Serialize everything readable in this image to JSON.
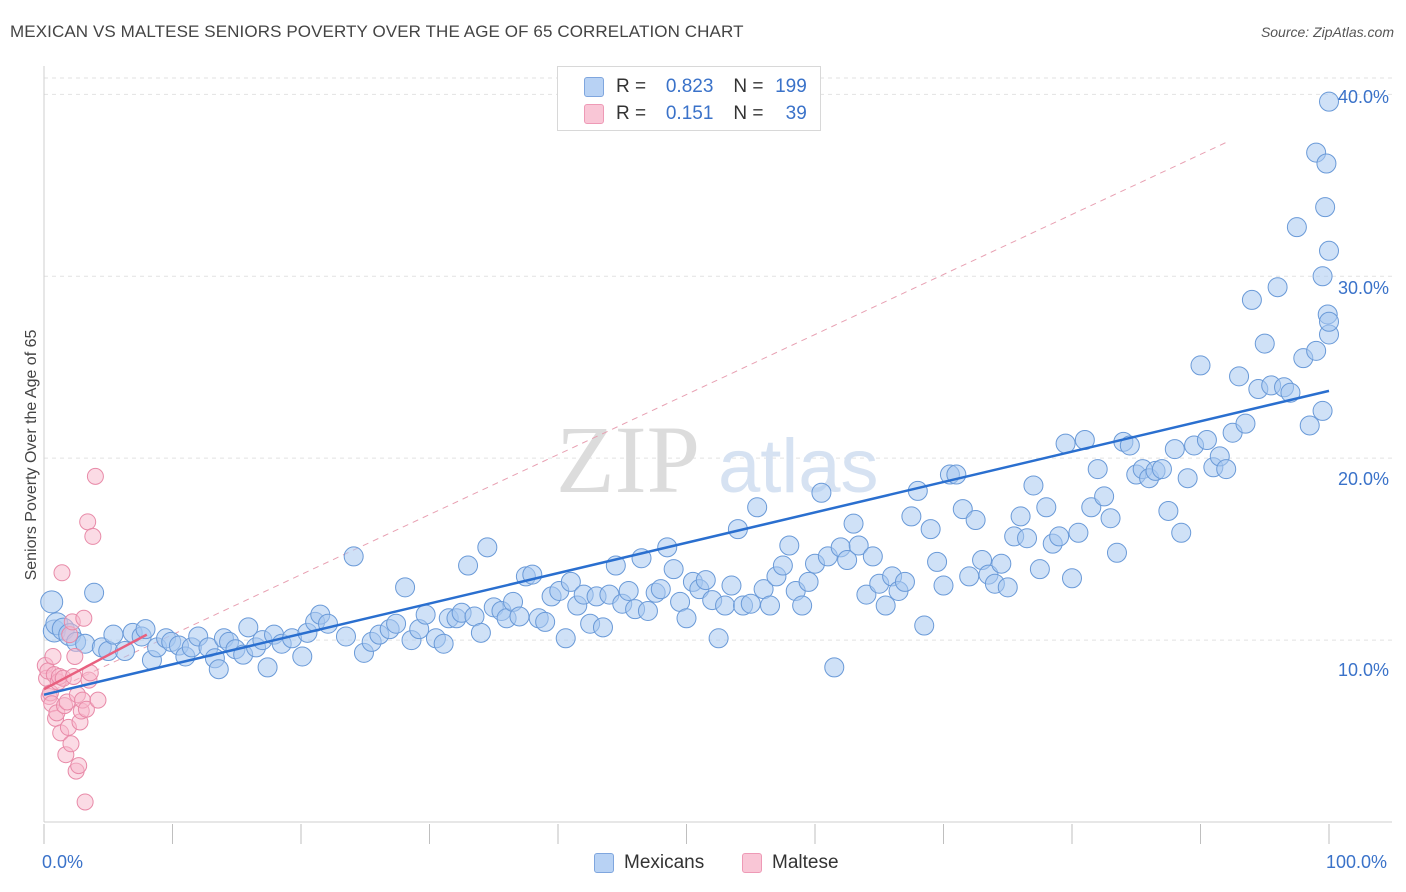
{
  "title": "MEXICAN VS MALTESE SENIORS POVERTY OVER THE AGE OF 65 CORRELATION CHART",
  "source": "Source: ZipAtlas.com",
  "watermark": {
    "zip": "ZIP",
    "atlas": "atlas"
  },
  "legend_top": {
    "row1": {
      "r_label": "R =",
      "r_value": "0.823",
      "n_label": "N =",
      "n_value": "199"
    },
    "row2": {
      "r_label": "R =",
      "r_value": "0.151",
      "n_label": "N =",
      "n_value": "39"
    }
  },
  "legend_bottom": {
    "mexicans": "Mexicans",
    "maltese": "Maltese"
  },
  "colors": {
    "blue_fill": "#a8c8f0",
    "blue_stroke": "#6a9ad8",
    "blue_line": "#2a6fcf",
    "pink_fill": "#f7b8cc",
    "pink_stroke": "#e88aa8",
    "pink_line": "#e8607f",
    "tick_text": "#3a72c9",
    "grid": "#e2e2e2"
  },
  "chart_data": {
    "type": "scatter",
    "title": "MEXICAN VS MALTESE SENIORS POVERTY OVER THE AGE OF 65 CORRELATION CHART",
    "xlabel": "",
    "ylabel": "Seniors Poverty Over the Age of 65",
    "xlim": [
      0,
      100
    ],
    "ylim": [
      0,
      40.9
    ],
    "x_tick_labels": [
      "0.0%",
      "100.0%"
    ],
    "y_ticks": [
      10,
      20,
      30,
      40
    ],
    "y_tick_labels": [
      "10.0%",
      "20.0%",
      "30.0%",
      "40.0%"
    ],
    "grid": true,
    "legend_position": "top-center",
    "series": [
      {
        "name": "Mexicans",
        "r": 0.823,
        "n": 199,
        "trend": {
          "x": [
            0,
            100
          ],
          "y": [
            7.0,
            23.7
          ]
        },
        "points": [
          [
            0.6,
            12.1
          ],
          [
            0.8,
            10.5
          ],
          [
            1.0,
            10.9
          ],
          [
            1.5,
            10.6
          ],
          [
            2.0,
            10.3
          ],
          [
            2.5,
            9.9
          ],
          [
            3.2,
            9.8
          ],
          [
            3.9,
            12.6
          ],
          [
            4.5,
            9.6
          ],
          [
            5.0,
            9.4
          ],
          [
            5.4,
            10.3
          ],
          [
            6.3,
            9.4
          ],
          [
            6.9,
            10.4
          ],
          [
            7.6,
            10.2
          ],
          [
            7.9,
            10.6
          ],
          [
            8.4,
            8.9
          ],
          [
            8.8,
            9.6
          ],
          [
            9.5,
            10.1
          ],
          [
            9.9,
            9.9
          ],
          [
            10.5,
            9.7
          ],
          [
            11.0,
            9.1
          ],
          [
            11.5,
            9.6
          ],
          [
            12.0,
            10.2
          ],
          [
            12.8,
            9.6
          ],
          [
            13.3,
            9.0
          ],
          [
            13.6,
            8.4
          ],
          [
            14.0,
            10.1
          ],
          [
            14.4,
            9.9
          ],
          [
            14.9,
            9.5
          ],
          [
            15.5,
            9.2
          ],
          [
            15.9,
            10.7
          ],
          [
            16.5,
            9.6
          ],
          [
            17.0,
            10.0
          ],
          [
            17.4,
            8.5
          ],
          [
            17.9,
            10.3
          ],
          [
            18.5,
            9.8
          ],
          [
            19.3,
            10.1
          ],
          [
            20.1,
            9.1
          ],
          [
            20.5,
            10.4
          ],
          [
            21.1,
            11.0
          ],
          [
            21.5,
            11.4
          ],
          [
            22.1,
            10.9
          ],
          [
            23.5,
            10.2
          ],
          [
            24.1,
            14.6
          ],
          [
            24.9,
            9.3
          ],
          [
            25.5,
            9.9
          ],
          [
            26.1,
            10.3
          ],
          [
            26.9,
            10.6
          ],
          [
            27.4,
            10.9
          ],
          [
            28.1,
            12.9
          ],
          [
            28.6,
            10.0
          ],
          [
            29.2,
            10.6
          ],
          [
            29.7,
            11.4
          ],
          [
            30.5,
            10.1
          ],
          [
            31.1,
            9.8
          ],
          [
            31.5,
            11.2
          ],
          [
            32.1,
            11.2
          ],
          [
            32.5,
            11.5
          ],
          [
            33.0,
            14.1
          ],
          [
            33.5,
            11.3
          ],
          [
            34.0,
            10.4
          ],
          [
            34.5,
            15.1
          ],
          [
            35.0,
            11.8
          ],
          [
            35.6,
            11.6
          ],
          [
            36.0,
            11.2
          ],
          [
            36.5,
            12.1
          ],
          [
            37.0,
            11.3
          ],
          [
            37.5,
            13.5
          ],
          [
            38.0,
            13.6
          ],
          [
            38.5,
            11.2
          ],
          [
            39.0,
            11.0
          ],
          [
            39.5,
            12.4
          ],
          [
            40.1,
            12.7
          ],
          [
            40.6,
            10.1
          ],
          [
            41.0,
            13.2
          ],
          [
            41.5,
            11.9
          ],
          [
            42.0,
            12.5
          ],
          [
            42.5,
            10.9
          ],
          [
            43.0,
            12.4
          ],
          [
            43.5,
            10.7
          ],
          [
            44.0,
            12.5
          ],
          [
            44.5,
            14.1
          ],
          [
            45.0,
            12.0
          ],
          [
            45.5,
            12.7
          ],
          [
            46.0,
            11.7
          ],
          [
            46.5,
            14.5
          ],
          [
            47.0,
            11.6
          ],
          [
            47.6,
            12.6
          ],
          [
            48.0,
            12.8
          ],
          [
            48.5,
            15.1
          ],
          [
            49.0,
            13.9
          ],
          [
            49.5,
            12.1
          ],
          [
            50.0,
            11.2
          ],
          [
            50.5,
            13.2
          ],
          [
            51.0,
            12.8
          ],
          [
            51.5,
            13.3
          ],
          [
            52.0,
            12.2
          ],
          [
            52.5,
            10.1
          ],
          [
            53.0,
            11.9
          ],
          [
            53.5,
            13.0
          ],
          [
            54.0,
            16.1
          ],
          [
            54.4,
            11.9
          ],
          [
            55.0,
            12.0
          ],
          [
            55.5,
            17.3
          ],
          [
            56.0,
            12.8
          ],
          [
            56.5,
            11.9
          ],
          [
            57.0,
            13.5
          ],
          [
            57.5,
            14.1
          ],
          [
            58.0,
            15.2
          ],
          [
            58.5,
            12.7
          ],
          [
            59.0,
            11.9
          ],
          [
            59.5,
            13.2
          ],
          [
            60.0,
            14.2
          ],
          [
            60.5,
            18.1
          ],
          [
            61.0,
            14.6
          ],
          [
            61.5,
            8.5
          ],
          [
            62.0,
            15.1
          ],
          [
            62.5,
            14.4
          ],
          [
            63.0,
            16.4
          ],
          [
            63.4,
            15.2
          ],
          [
            64.0,
            12.5
          ],
          [
            64.5,
            14.6
          ],
          [
            65.0,
            13.1
          ],
          [
            65.5,
            11.9
          ],
          [
            66.0,
            13.5
          ],
          [
            66.5,
            12.7
          ],
          [
            67.0,
            13.2
          ],
          [
            67.5,
            16.8
          ],
          [
            68.0,
            18.2
          ],
          [
            68.5,
            10.8
          ],
          [
            69.0,
            16.1
          ],
          [
            69.5,
            14.3
          ],
          [
            70.0,
            13.0
          ],
          [
            70.5,
            19.1
          ],
          [
            71.0,
            19.1
          ],
          [
            71.5,
            17.2
          ],
          [
            72.0,
            13.5
          ],
          [
            72.5,
            16.6
          ],
          [
            73.0,
            14.4
          ],
          [
            73.5,
            13.6
          ],
          [
            74.0,
            13.1
          ],
          [
            74.5,
            14.2
          ],
          [
            75.0,
            12.9
          ],
          [
            75.5,
            15.7
          ],
          [
            76.0,
            16.8
          ],
          [
            76.5,
            15.6
          ],
          [
            77.0,
            18.5
          ],
          [
            77.5,
            13.9
          ],
          [
            78.0,
            17.3
          ],
          [
            78.5,
            15.3
          ],
          [
            79.0,
            15.7
          ],
          [
            79.5,
            20.8
          ],
          [
            80.0,
            13.4
          ],
          [
            80.5,
            15.9
          ],
          [
            81.0,
            21.0
          ],
          [
            81.5,
            17.3
          ],
          [
            82.0,
            19.4
          ],
          [
            82.5,
            17.9
          ],
          [
            83.0,
            16.7
          ],
          [
            83.5,
            14.8
          ],
          [
            84.0,
            20.9
          ],
          [
            84.5,
            20.7
          ],
          [
            85.0,
            19.1
          ],
          [
            85.5,
            19.4
          ],
          [
            86.0,
            18.9
          ],
          [
            86.5,
            19.3
          ],
          [
            87.0,
            19.4
          ],
          [
            87.5,
            17.1
          ],
          [
            88.0,
            20.5
          ],
          [
            88.5,
            15.9
          ],
          [
            89.0,
            18.9
          ],
          [
            89.5,
            20.7
          ],
          [
            90.0,
            25.1
          ],
          [
            90.5,
            21.0
          ],
          [
            91.0,
            19.5
          ],
          [
            91.5,
            20.1
          ],
          [
            92.0,
            19.4
          ],
          [
            92.5,
            21.4
          ],
          [
            93.0,
            24.5
          ],
          [
            93.5,
            21.9
          ],
          [
            94.0,
            28.7
          ],
          [
            94.5,
            23.8
          ],
          [
            95.0,
            26.3
          ],
          [
            95.5,
            24.0
          ],
          [
            96.0,
            29.4
          ],
          [
            96.5,
            23.9
          ],
          [
            97.0,
            23.6
          ],
          [
            97.5,
            32.7
          ],
          [
            98.0,
            25.5
          ],
          [
            98.5,
            21.8
          ],
          [
            99.0,
            25.9
          ],
          [
            99.5,
            30.0
          ],
          [
            99.0,
            36.8
          ],
          [
            99.5,
            22.6
          ],
          [
            99.7,
            33.8
          ],
          [
            99.8,
            36.2
          ],
          [
            99.9,
            27.9
          ],
          [
            100.0,
            26.8
          ],
          [
            100.0,
            31.4
          ],
          [
            100.0,
            27.5
          ],
          [
            100.0,
            39.6
          ]
        ]
      },
      {
        "name": "Maltese",
        "r": 0.151,
        "n": 39,
        "trend": {
          "x": [
            0,
            8
          ],
          "y": [
            7.3,
            10.3
          ]
        },
        "points": [
          [
            0.1,
            8.6
          ],
          [
            0.2,
            7.9
          ],
          [
            0.3,
            8.3
          ],
          [
            0.4,
            6.9
          ],
          [
            0.5,
            7.1
          ],
          [
            0.6,
            6.5
          ],
          [
            0.7,
            9.1
          ],
          [
            0.8,
            8.1
          ],
          [
            0.9,
            5.7
          ],
          [
            1.0,
            6.0
          ],
          [
            1.1,
            7.7
          ],
          [
            1.2,
            8.0
          ],
          [
            1.3,
            4.9
          ],
          [
            1.4,
            13.7
          ],
          [
            1.5,
            7.9
          ],
          [
            1.6,
            6.4
          ],
          [
            1.7,
            3.7
          ],
          [
            1.8,
            6.6
          ],
          [
            1.9,
            5.2
          ],
          [
            2.0,
            10.3
          ],
          [
            2.1,
            4.3
          ],
          [
            2.2,
            11.0
          ],
          [
            2.3,
            8.0
          ],
          [
            2.4,
            9.1
          ],
          [
            2.5,
            2.8
          ],
          [
            2.6,
            7.0
          ],
          [
            2.7,
            3.1
          ],
          [
            2.8,
            5.5
          ],
          [
            2.9,
            6.1
          ],
          [
            3.0,
            6.7
          ],
          [
            3.1,
            11.2
          ],
          [
            3.2,
            1.1
          ],
          [
            3.3,
            6.2
          ],
          [
            3.4,
            16.5
          ],
          [
            3.5,
            7.8
          ],
          [
            3.6,
            8.2
          ],
          [
            3.8,
            15.7
          ],
          [
            4.0,
            19.0
          ],
          [
            4.2,
            6.7
          ]
        ]
      }
    ],
    "reference_line": {
      "style": "dashed",
      "x": [
        0,
        100
      ],
      "y": [
        7.0,
        40.0
      ]
    }
  }
}
